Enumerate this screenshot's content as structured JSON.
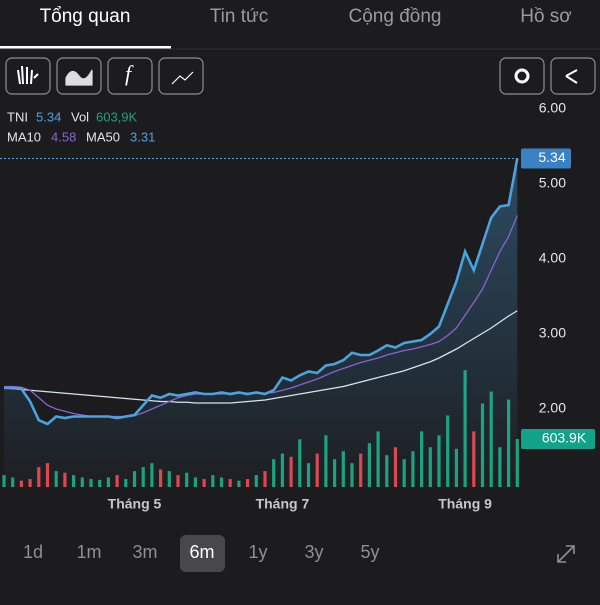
{
  "tabs": [
    "Tổng quan",
    "Tin tức",
    "Cộng đồng",
    "Hồ sơ"
  ],
  "ranges": [
    "1d",
    "1m",
    "3m",
    "6m",
    "1y",
    "3y",
    "5y"
  ],
  "chart_data": {
    "type": "line",
    "categories": [
      null,
      null,
      null,
      null,
      null,
      null,
      null,
      null,
      null,
      null,
      null,
      null,
      null,
      null,
      null,
      "Tháng 5",
      null,
      null,
      null,
      null,
      null,
      null,
      null,
      null,
      null,
      null,
      null,
      null,
      null,
      null,
      null,
      null,
      "Tháng 7",
      null,
      null,
      null,
      null,
      null,
      null,
      null,
      null,
      null,
      null,
      null,
      null,
      null,
      null,
      null,
      null,
      null,
      null,
      null,
      null,
      "Tháng 9",
      null,
      null,
      null,
      null,
      null,
      null
    ],
    "series": [
      {
        "name": "TNI",
        "color": "#4aa3e0",
        "values": [
          2.28,
          2.28,
          2.27,
          2.1,
          1.85,
          1.8,
          1.9,
          1.88,
          1.9,
          1.9,
          1.9,
          1.9,
          1.9,
          1.88,
          1.9,
          1.92,
          2.05,
          2.18,
          2.15,
          2.2,
          2.18,
          2.2,
          2.22,
          2.2,
          2.2,
          2.22,
          2.2,
          2.22,
          2.2,
          2.22,
          2.2,
          2.25,
          2.42,
          2.38,
          2.45,
          2.5,
          2.48,
          2.58,
          2.6,
          2.65,
          2.75,
          2.72,
          2.72,
          2.78,
          2.85,
          2.82,
          2.88,
          2.9,
          2.92,
          3.0,
          3.1,
          3.4,
          3.7,
          4.1,
          3.85,
          4.2,
          4.55,
          4.7,
          4.72,
          5.34
        ]
      },
      {
        "name": "MA10",
        "color": "#8a63d2",
        "values": [
          2.3,
          2.3,
          2.29,
          2.25,
          2.15,
          2.05,
          2.0,
          1.97,
          1.94,
          1.92,
          1.9,
          1.9,
          1.9,
          1.9,
          1.9,
          1.91,
          1.95,
          2.0,
          2.05,
          2.1,
          2.15,
          2.18,
          2.2,
          2.2,
          2.2,
          2.2,
          2.21,
          2.21,
          2.21,
          2.21,
          2.21,
          2.22,
          2.25,
          2.28,
          2.32,
          2.36,
          2.4,
          2.45,
          2.5,
          2.54,
          2.58,
          2.62,
          2.65,
          2.68,
          2.72,
          2.75,
          2.78,
          2.8,
          2.83,
          2.86,
          2.9,
          2.98,
          3.08,
          3.25,
          3.42,
          3.6,
          3.85,
          4.1,
          4.3,
          4.58
        ]
      },
      {
        "name": "MA50",
        "color": "#d6e4ef",
        "values": [
          2.28,
          2.27,
          2.26,
          2.25,
          2.24,
          2.23,
          2.22,
          2.21,
          2.2,
          2.19,
          2.18,
          2.17,
          2.16,
          2.15,
          2.14,
          2.13,
          2.12,
          2.11,
          2.1,
          2.1,
          2.09,
          2.09,
          2.08,
          2.08,
          2.08,
          2.08,
          2.08,
          2.09,
          2.1,
          2.11,
          2.12,
          2.14,
          2.16,
          2.18,
          2.2,
          2.22,
          2.24,
          2.26,
          2.28,
          2.3,
          2.33,
          2.36,
          2.39,
          2.42,
          2.45,
          2.48,
          2.51,
          2.55,
          2.59,
          2.63,
          2.68,
          2.74,
          2.8,
          2.87,
          2.94,
          3.01,
          3.08,
          3.16,
          3.24,
          3.31
        ]
      }
    ],
    "volume": {
      "name": "Vol",
      "legend_label": "603,9K",
      "axis_label": "603.9K",
      "up_color": "#1aa37a",
      "down_color": "#e0454a",
      "vlim": [
        0,
        2000
      ],
      "values": [
        150,
        120,
        80,
        100,
        250,
        300,
        200,
        180,
        150,
        120,
        100,
        90,
        120,
        150,
        100,
        200,
        250,
        300,
        220,
        200,
        150,
        180,
        120,
        100,
        150,
        120,
        100,
        80,
        100,
        150,
        200,
        350,
        420,
        380,
        600,
        300,
        420,
        650,
        350,
        450,
        300,
        420,
        550,
        700,
        400,
        500,
        350,
        450,
        700,
        500,
        650,
        900,
        480,
        1470,
        700,
        1050,
        1200,
        500,
        1100,
        603.9
      ]
    },
    "ylim": [
      1,
      6
    ],
    "yticks": [
      {
        "value": 2,
        "label": "2.00"
      },
      {
        "value": 3,
        "label": "3.00"
      },
      {
        "value": 4,
        "label": "4.00"
      },
      {
        "value": 5,
        "label": "5.00"
      },
      {
        "value": 6,
        "label": "6.00"
      }
    ]
  }
}
